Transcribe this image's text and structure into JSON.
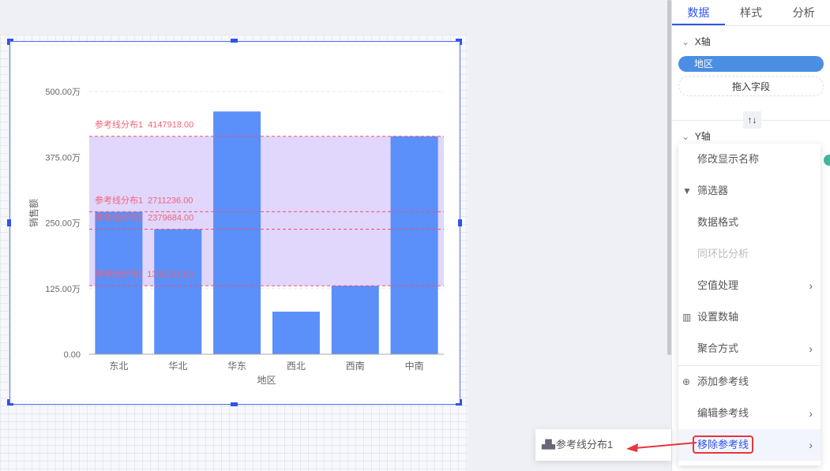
{
  "panel": {
    "tabs": [
      "数据",
      "样式",
      "分析"
    ],
    "x_axis_label": "X轴",
    "x_field": "地区",
    "drop_field": "拖入字段",
    "swap_icon": "↑↓",
    "y_axis_label": "Y轴"
  },
  "menu": {
    "items": [
      {
        "label": "修改显示名称",
        "icon": "",
        "arrow": false,
        "disabled": false
      },
      {
        "label": "筛选器",
        "icon": "filter-icon",
        "arrow": false,
        "disabled": false
      },
      {
        "label": "数据格式",
        "icon": "",
        "arrow": false,
        "disabled": false
      },
      {
        "label": "同环比分析",
        "icon": "",
        "arrow": false,
        "disabled": true
      },
      {
        "label": "空值处理",
        "icon": "",
        "arrow": true,
        "disabled": false
      },
      {
        "label": "设置数轴",
        "icon": "axis-icon",
        "arrow": false,
        "disabled": false
      },
      {
        "label": "聚合方式",
        "icon": "",
        "arrow": true,
        "disabled": false
      },
      {
        "label": "添加参考线",
        "icon": "plus-circle-icon",
        "arrow": false,
        "disabled": false
      },
      {
        "label": "编辑参考线",
        "icon": "",
        "arrow": true,
        "disabled": false
      },
      {
        "label": "移除参考线",
        "icon": "",
        "arrow": true,
        "disabled": false,
        "highlighted": true
      }
    ]
  },
  "submenu": {
    "item": "参考线分布1",
    "icon": "reference-line-icon"
  },
  "colors": {
    "bar": "#5b8ff9",
    "accent": "#2f54eb",
    "refline": "#f0506e",
    "band": "#d9ccfb",
    "highlight": "#e8353f"
  },
  "chart_data": {
    "type": "bar",
    "categories": [
      "东北",
      "华北",
      "华东",
      "西北",
      "西南",
      "中南"
    ],
    "values": [
      2711236,
      2379684,
      4620000,
      810000,
      1303131,
      4147918
    ],
    "xlabel": "地区",
    "ylabel": "销售额",
    "ylim": [
      0,
      5000000
    ],
    "yticks": [
      "0.00",
      "125.00万",
      "250.00万",
      "375.00万",
      "500.00万"
    ],
    "grid": true,
    "reference_lines": [
      {
        "label": "参考线分布1",
        "value": 4147918,
        "text": "4147918.00"
      },
      {
        "label": "参考线分布1",
        "value": 2711236,
        "text": "2711236.00"
      },
      {
        "label": "参考线分布1",
        "value": 2379684,
        "text": "2379684.00"
      },
      {
        "label": "参考线分布1",
        "value": 1303131,
        "text": "1303131.00"
      }
    ],
    "band": [
      1303131,
      4147918
    ]
  }
}
